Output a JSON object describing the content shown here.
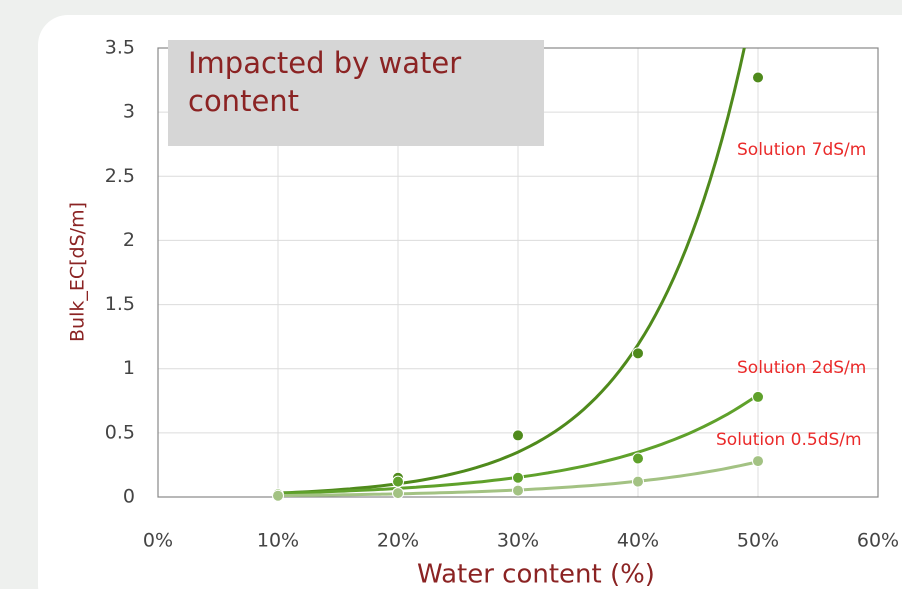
{
  "chart_data": {
    "type": "scatter",
    "title": "Impacted by water content",
    "x_label": "Water content (%)",
    "y_label": "Bulk_EC[dS/m]",
    "xlim": [
      0,
      60
    ],
    "xticks": [
      {
        "value": 0,
        "label": "0%"
      },
      {
        "value": 10,
        "label": "10%"
      },
      {
        "value": 20,
        "label": "20%"
      },
      {
        "value": 30,
        "label": "30%"
      },
      {
        "value": 40,
        "label": "40%"
      },
      {
        "value": 50,
        "label": "50%"
      },
      {
        "value": 60,
        "label": "60%"
      }
    ],
    "ylim": [
      0,
      3.5
    ],
    "yticks": [
      0,
      0.5,
      1,
      1.5,
      2,
      2.5,
      3,
      3.5
    ],
    "grid": true,
    "x": [
      10,
      20,
      30,
      40,
      50
    ],
    "series": [
      {
        "name": "Solution 7dS/m",
        "color": "#4f8a1c",
        "values": [
          0.02,
          0.15,
          0.48,
          1.12,
          3.27
        ]
      },
      {
        "name": "Solution 2dS/m",
        "color": "#5fa12b",
        "values": [
          0.02,
          0.12,
          0.15,
          0.3,
          0.78
        ]
      },
      {
        "name": "Solution 0.5dS/m",
        "color": "#a3c283",
        "values": [
          0.01,
          0.03,
          0.05,
          0.12,
          0.28
        ]
      }
    ]
  }
}
